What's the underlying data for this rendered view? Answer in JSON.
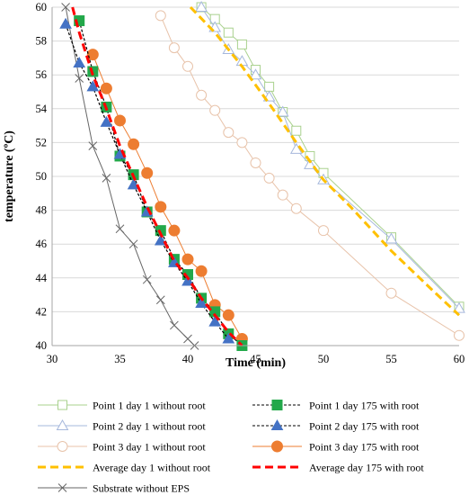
{
  "chart_data": {
    "type": "line",
    "title": "",
    "xlabel": "Time (min)",
    "ylabel": "temperature (ºC)",
    "xlim": [
      30,
      60
    ],
    "ylim": [
      40,
      60
    ],
    "xticks": [
      "30",
      "35",
      "40",
      "45",
      "50",
      "55",
      "60"
    ],
    "yticks": [
      "40",
      "42",
      "44",
      "46",
      "48",
      "50",
      "52",
      "54",
      "56",
      "58",
      "60"
    ],
    "grid": "horizontal",
    "legend_position": "bottom",
    "series": [
      {
        "name": "Point 1 day 1 without root",
        "color": "#a9d18e",
        "dash": "solid",
        "marker": "square-open",
        "width": 1,
        "points": [
          [
            41.0,
            60.0
          ],
          [
            42.0,
            59.3
          ],
          [
            43.0,
            58.5
          ],
          [
            44.0,
            57.8
          ],
          [
            45.0,
            56.3
          ],
          [
            46.0,
            55.3
          ],
          [
            47.0,
            53.8
          ],
          [
            48.0,
            52.7
          ],
          [
            49.0,
            51.2
          ],
          [
            50.0,
            50.2
          ],
          [
            55.0,
            46.4
          ],
          [
            60.0,
            42.3
          ]
        ]
      },
      {
        "name": "Point 2 day 1 without root",
        "color": "#a6b8dc",
        "dash": "solid",
        "marker": "triangle-open",
        "width": 1,
        "points": [
          [
            41.0,
            60.0
          ],
          [
            42.0,
            58.8
          ],
          [
            43.0,
            57.5
          ],
          [
            44.0,
            56.8
          ],
          [
            45.0,
            56.0
          ],
          [
            46.0,
            54.7
          ],
          [
            47.0,
            53.8
          ],
          [
            48.0,
            51.6
          ],
          [
            49.0,
            50.7
          ],
          [
            50.0,
            49.8
          ],
          [
            55.0,
            46.3
          ],
          [
            60.0,
            42.2
          ]
        ]
      },
      {
        "name": "Point 3 day 1 without root",
        "color": "#e8c3aa",
        "dash": "solid",
        "marker": "circle-open",
        "width": 1,
        "points": [
          [
            38.0,
            59.5
          ],
          [
            39.0,
            57.6
          ],
          [
            40.0,
            56.5
          ],
          [
            41.0,
            54.8
          ],
          [
            42.0,
            53.9
          ],
          [
            43.0,
            52.6
          ],
          [
            44.0,
            52.0
          ],
          [
            45.0,
            50.8
          ],
          [
            46.0,
            49.9
          ],
          [
            47.0,
            48.9
          ],
          [
            48.0,
            48.1
          ],
          [
            50.0,
            46.8
          ],
          [
            55.0,
            43.1
          ],
          [
            60.0,
            40.6
          ]
        ]
      },
      {
        "name": "Point 1 day 175 with root",
        "color": "#000000",
        "markerColor": "#22a84a",
        "dash": "dot",
        "marker": "square",
        "width": 1.2,
        "points": [
          [
            32.0,
            59.2
          ],
          [
            33.0,
            56.2
          ],
          [
            34.0,
            54.1
          ],
          [
            35.0,
            51.2
          ],
          [
            36.0,
            50.1
          ],
          [
            37.0,
            47.9
          ],
          [
            38.0,
            46.8
          ],
          [
            39.0,
            45.1
          ],
          [
            40.0,
            44.2
          ],
          [
            41.0,
            42.8
          ],
          [
            42.0,
            42.0
          ],
          [
            43.0,
            40.7
          ],
          [
            44.0,
            40.0
          ]
        ]
      },
      {
        "name": "Point 2 day 175 with root",
        "color": "#000000",
        "markerColor": "#4472c4",
        "dash": "dot",
        "marker": "triangle",
        "width": 1.2,
        "points": [
          [
            31.0,
            59.0
          ],
          [
            32.0,
            56.7
          ],
          [
            33.0,
            55.3
          ],
          [
            34.0,
            53.2
          ],
          [
            35.0,
            51.3
          ],
          [
            36.0,
            49.5
          ],
          [
            37.0,
            47.9
          ],
          [
            38.0,
            46.2
          ],
          [
            39.0,
            44.9
          ],
          [
            40.0,
            43.8
          ],
          [
            41.0,
            42.5
          ],
          [
            42.0,
            41.4
          ],
          [
            43.0,
            40.4
          ]
        ]
      },
      {
        "name": "Point 3 day 175 with root",
        "color": "#ed7d31",
        "markerColor": "#ed7d31",
        "dash": "solid",
        "marker": "circle",
        "width": 1,
        "points": [
          [
            33.0,
            57.2
          ],
          [
            34.0,
            55.2
          ],
          [
            35.0,
            53.3
          ],
          [
            36.0,
            51.9
          ],
          [
            37.0,
            50.2
          ],
          [
            38.0,
            48.2
          ],
          [
            39.0,
            46.8
          ],
          [
            40.0,
            45.1
          ],
          [
            41.0,
            44.4
          ],
          [
            42.0,
            42.4
          ],
          [
            43.0,
            41.8
          ],
          [
            44.0,
            40.4
          ]
        ]
      },
      {
        "name": "Average day 1 without root",
        "color": "#ffc000",
        "dash": "dash",
        "marker": "none",
        "width": 3,
        "points": [
          [
            40.2,
            60.0
          ],
          [
            42.0,
            58.5
          ],
          [
            44.0,
            56.5
          ],
          [
            46.0,
            54.3
          ],
          [
            48.0,
            52.0
          ],
          [
            50.0,
            49.8
          ],
          [
            52.0,
            48.2
          ],
          [
            55.0,
            45.6
          ],
          [
            58.0,
            43.3
          ],
          [
            60.0,
            41.8
          ]
        ]
      },
      {
        "name": "Average day 175 with root",
        "color": "#ff0000",
        "dash": "dash",
        "marker": "none",
        "width": 3,
        "points": [
          [
            31.5,
            60.0
          ],
          [
            32.0,
            58.5
          ],
          [
            33.0,
            56.0
          ],
          [
            34.0,
            54.0
          ],
          [
            35.0,
            51.8
          ],
          [
            36.0,
            50.0
          ],
          [
            37.0,
            48.2
          ],
          [
            38.0,
            46.6
          ],
          [
            39.0,
            45.0
          ],
          [
            40.0,
            44.0
          ],
          [
            41.0,
            42.8
          ],
          [
            42.0,
            41.8
          ],
          [
            43.0,
            40.8
          ],
          [
            44.0,
            40.0
          ]
        ]
      },
      {
        "name": "Substrate without EPS",
        "color": "#666666",
        "dash": "solid",
        "marker": "x",
        "width": 1,
        "points": [
          [
            31.0,
            60.0
          ],
          [
            32.0,
            55.8
          ],
          [
            33.0,
            51.8
          ],
          [
            34.0,
            49.9
          ],
          [
            35.0,
            46.9
          ],
          [
            36.0,
            46.0
          ],
          [
            37.0,
            43.9
          ],
          [
            38.0,
            42.7
          ],
          [
            39.0,
            41.2
          ],
          [
            40.0,
            40.4
          ],
          [
            40.5,
            40.0
          ]
        ]
      }
    ],
    "legend_order": [
      0,
      3,
      1,
      4,
      2,
      5,
      6,
      7,
      8
    ]
  }
}
